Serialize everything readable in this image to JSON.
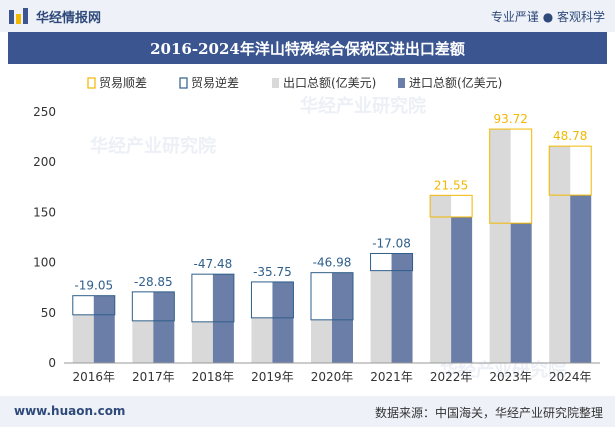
{
  "header": {
    "brand": "华经情报网",
    "slogan": "专业严谨 ● 客观科学"
  },
  "title": "2016-2024年洋山特殊综合保税区进出口差额",
  "watermarks": [
    "华经产业研究院",
    "华经产业研究院",
    "华经产业研究院"
  ],
  "footer": {
    "site": "www.huaon.com",
    "source": "数据来源：中国海关，华经产业研究院整理"
  },
  "colors": {
    "export": "#d9d9d9",
    "import": "#6a7ea8",
    "surplus": "#f2b800",
    "deficit": "#2f5f8a",
    "header_bg": "#3a5590"
  },
  "chart_data": {
    "type": "bar",
    "categories": [
      "2016年",
      "2017年",
      "2018年",
      "2019年",
      "2020年",
      "2021年",
      "2022年",
      "2023年",
      "2024年"
    ],
    "legend": [
      "贸易顺差",
      "贸易逆差",
      "出口总额(亿美元)",
      "进口总额(亿美元)"
    ],
    "series": [
      {
        "name": "出口总额(亿美元)",
        "values": [
          48,
          42,
          41,
          45,
          43,
          92,
          167,
          233,
          216
        ]
      },
      {
        "name": "进口总额(亿美元)",
        "values": [
          67.05,
          70.85,
          88.48,
          80.75,
          89.98,
          109.08,
          145.45,
          139.28,
          167.22
        ]
      }
    ],
    "balance": [
      -19.05,
      -28.85,
      -47.48,
      -35.75,
      -46.98,
      -17.08,
      21.55,
      93.72,
      48.78
    ],
    "balance_labels": [
      "-19.05",
      "-28.85",
      "-47.48",
      "-35.75",
      "-46.98",
      "-17.08",
      "21.55",
      "93.72",
      "48.78"
    ],
    "ylim": [
      0,
      250
    ],
    "yticks": [
      "0",
      "50",
      "100",
      "150",
      "200",
      "250"
    ],
    "grid": false,
    "legend_position": "top"
  }
}
